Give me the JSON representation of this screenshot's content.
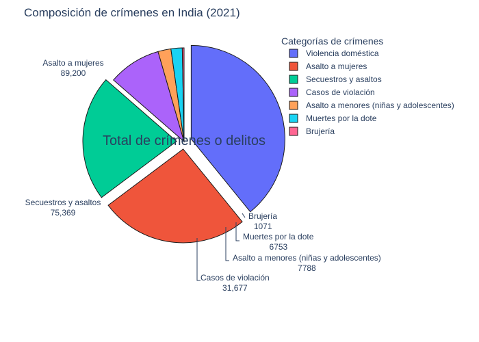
{
  "chart_data": {
    "type": "pie",
    "title": "Composición de crímenes en India (2021)",
    "annotation": "Total de crímenes o delitos",
    "legend_title": "Categorías de crímenes",
    "legend_position": "top-right",
    "slices": [
      {
        "label": "Violencia doméstica",
        "value": 136234,
        "display": "",
        "color": "#636efa",
        "pulled": true
      },
      {
        "label": "Asalto a mujeres",
        "value": 89200,
        "display": "89,200",
        "color": "#ef553b",
        "pulled": true
      },
      {
        "label": "Secuestros y asaltos",
        "value": 75369,
        "display": "75,369",
        "color": "#00cc96",
        "pulled": true
      },
      {
        "label": "Casos de violación",
        "value": 31677,
        "display": "31,677",
        "color": "#ab63fa",
        "pulled": false
      },
      {
        "label": "Asalto a menores (niñas y adolescentes)",
        "value": 7788,
        "display": "7788",
        "color": "#ffa15a",
        "pulled": false
      },
      {
        "label": "Muertes por la dote",
        "value": 6753,
        "display": "6753",
        "color": "#19d3f3",
        "pulled": false
      },
      {
        "label": "Brujería",
        "value": 1071,
        "display": "1071",
        "color": "#ff6692",
        "pulled": false
      }
    ]
  }
}
